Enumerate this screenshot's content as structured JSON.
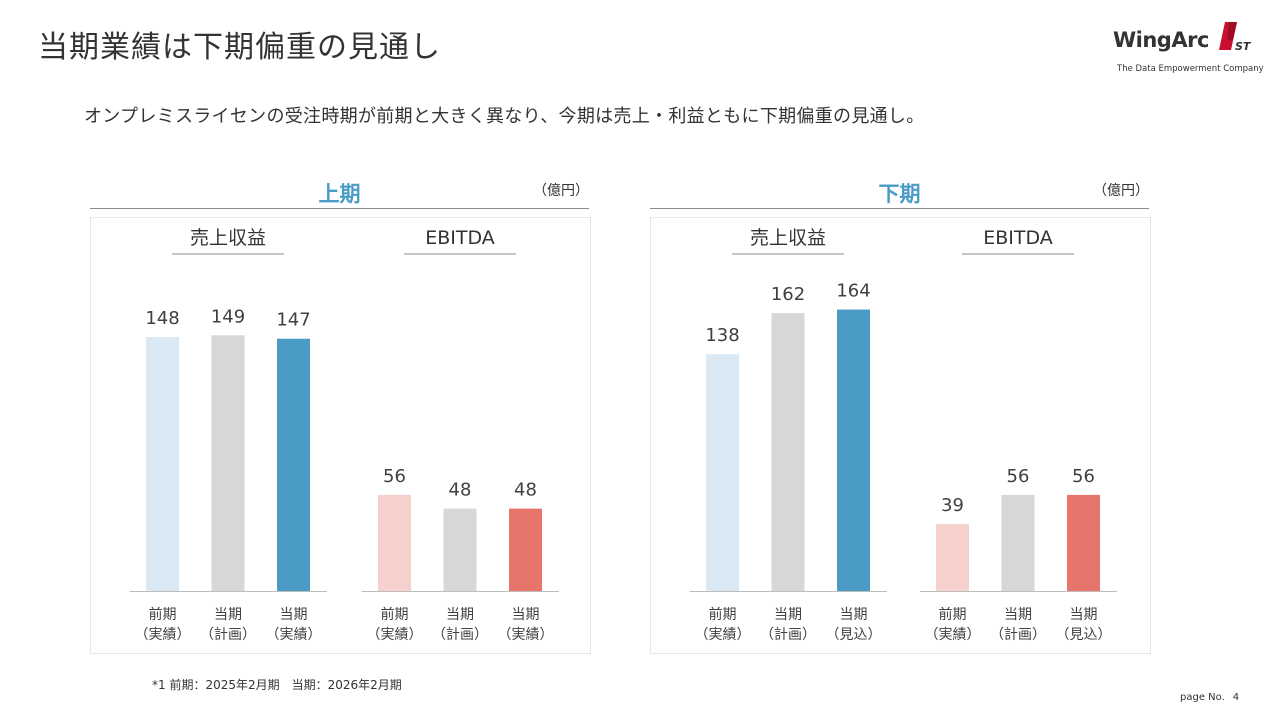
{
  "slide": {
    "title": "当期業績は下期偏重の見通し",
    "lead": "オンプレミスライセンの受注時期が前期と大きく異なり、今期は売上・利益ともに下期偏重の見通し。",
    "footnote": "*1 前期：2025年2月期　当期：2026年2月期",
    "page_label": "page No.",
    "page_number": "4",
    "logo": {
      "name": "WingArc",
      "mark_text": "1ST",
      "tagline": "The Data Empowerment Company"
    }
  },
  "colors": {
    "accent_blue": "#4a9cc6",
    "light_blue": "#dbe9f4",
    "gray": "#d7d7d7",
    "light_red": "#f6d0cd",
    "red": "#e8756c"
  },
  "panels": [
    {
      "title": "上期",
      "unit": "（億円）"
    },
    {
      "title": "下期",
      "unit": "（億円）"
    }
  ],
  "chart_data": [
    {
      "type": "bar",
      "title": "上期 売上収益",
      "categories": [
        "前期（実績）",
        "当期（計画）",
        "当期（実績）"
      ],
      "cat_lines": [
        [
          "前期",
          "（実績）"
        ],
        [
          "当期",
          "（計画）"
        ],
        [
          "当期",
          "（実績）"
        ]
      ],
      "values": [
        148,
        149,
        147
      ],
      "bar_colors": [
        "#dbe9f4",
        "#d7d7d7",
        "#4a9cc6"
      ],
      "unit": "億円",
      "ylim": [
        0,
        170
      ]
    },
    {
      "type": "bar",
      "title": "上期 EBITDA",
      "categories": [
        "前期（実績）",
        "当期（計画）",
        "当期（実績）"
      ],
      "cat_lines": [
        [
          "前期",
          "（実績）"
        ],
        [
          "当期",
          "（計画）"
        ],
        [
          "当期",
          "（実績）"
        ]
      ],
      "values": [
        56,
        48,
        48
      ],
      "bar_colors": [
        "#f6d0cd",
        "#d7d7d7",
        "#e8756c"
      ],
      "unit": "億円",
      "ylim": [
        0,
        170
      ]
    },
    {
      "type": "bar",
      "title": "下期 売上収益",
      "categories": [
        "前期（実績）",
        "当期（計画）",
        "当期（見込）"
      ],
      "cat_lines": [
        [
          "前期",
          "（実績）"
        ],
        [
          "当期",
          "（計画）"
        ],
        [
          "当期",
          "（見込）"
        ]
      ],
      "values": [
        138,
        162,
        164
      ],
      "bar_colors": [
        "#dbe9f4",
        "#d7d7d7",
        "#4a9cc6"
      ],
      "unit": "億円",
      "ylim": [
        0,
        170
      ]
    },
    {
      "type": "bar",
      "title": "下期 EBITDA",
      "categories": [
        "前期（実績）",
        "当期（計画）",
        "当期（見込）"
      ],
      "cat_lines": [
        [
          "前期",
          "（実績）"
        ],
        [
          "当期",
          "（計画）"
        ],
        [
          "当期",
          "（見込）"
        ]
      ],
      "values": [
        39,
        56,
        56
      ],
      "bar_colors": [
        "#f6d0cd",
        "#d7d7d7",
        "#e8756c"
      ],
      "unit": "億円",
      "ylim": [
        0,
        170
      ]
    }
  ],
  "chart_labels": [
    "売上収益",
    "EBITDA",
    "売上収益",
    "EBITDA"
  ]
}
